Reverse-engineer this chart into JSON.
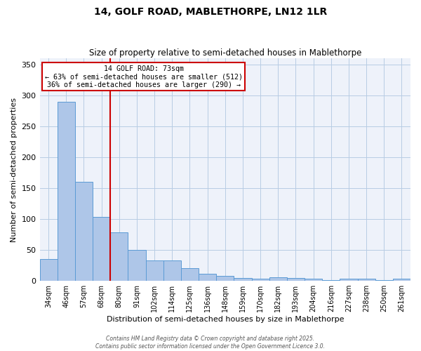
{
  "title": "14, GOLF ROAD, MABLETHORPE, LN12 1LR",
  "subtitle": "Size of property relative to semi-detached houses in Mablethorpe",
  "xlabel": "Distribution of semi-detached houses by size in Mablethorpe",
  "ylabel": "Number of semi-detached properties",
  "categories": [
    "34sqm",
    "46sqm",
    "57sqm",
    "68sqm",
    "80sqm",
    "91sqm",
    "102sqm",
    "114sqm",
    "125sqm",
    "136sqm",
    "148sqm",
    "159sqm",
    "170sqm",
    "182sqm",
    "193sqm",
    "204sqm",
    "216sqm",
    "227sqm",
    "238sqm",
    "250sqm",
    "261sqm"
  ],
  "values": [
    35,
    290,
    160,
    103,
    78,
    50,
    33,
    33,
    21,
    12,
    8,
    5,
    4,
    6,
    5,
    4,
    1,
    4,
    3,
    1,
    3
  ],
  "bar_color": "#aec6e8",
  "bar_edge_color": "#5b9bd5",
  "ylim": [
    0,
    360
  ],
  "yticks": [
    0,
    50,
    100,
    150,
    200,
    250,
    300,
    350
  ],
  "property_label": "14 GOLF ROAD: 73sqm",
  "annotation_line1": "← 63% of semi-detached houses are smaller (512)",
  "annotation_line2": "36% of semi-detached houses are larger (290) →",
  "vline_color": "#cc0000",
  "annotation_box_color": "#cc0000",
  "grid_color": "#b8cce4",
  "background_color": "#eef2fa",
  "footer1": "Contains HM Land Registry data © Crown copyright and database right 2025.",
  "footer2": "Contains public sector information licensed under the Open Government Licence 3.0."
}
